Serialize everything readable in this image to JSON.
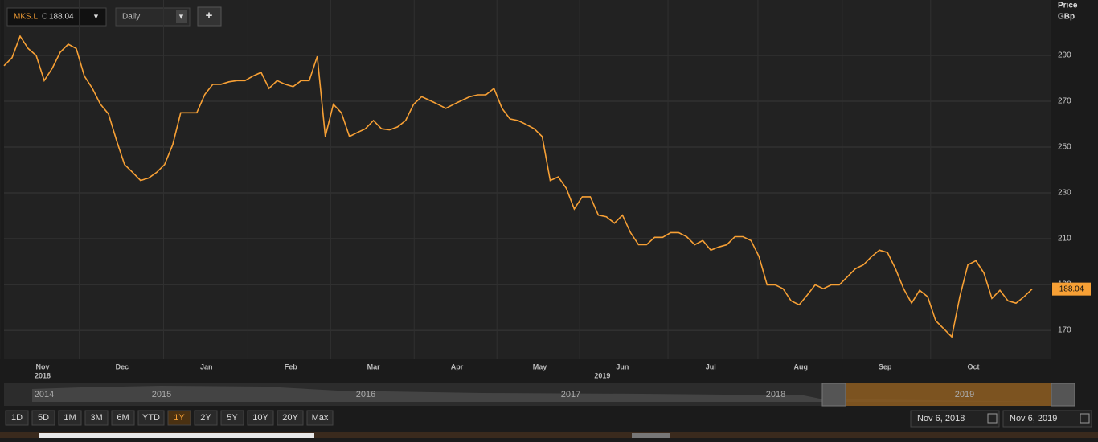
{
  "toolbar": {
    "symbol": "MKS.L",
    "close_label": "C",
    "close": 188.04,
    "interval": "Daily",
    "add": "+"
  },
  "chart_data": {
    "type": "line",
    "ylabel": "Price",
    "yunit": "GBp",
    "color": "#f7a035",
    "grid": true,
    "xlim": [
      0,
      128
    ],
    "xticks": [
      {
        "value": 4.8,
        "label": "Nov"
      },
      {
        "value": 14.7,
        "label": "Dec"
      },
      {
        "value": 25.2,
        "label": "Jan"
      },
      {
        "value": 35.7,
        "label": "Feb"
      },
      {
        "value": 46,
        "label": "Mar"
      },
      {
        "value": 56.4,
        "label": "Apr"
      },
      {
        "value": 66.7,
        "label": "May"
      },
      {
        "value": 77,
        "label": "Jun"
      },
      {
        "value": 88,
        "label": "Jul"
      },
      {
        "value": 99.2,
        "label": "Aug"
      },
      {
        "value": 109.7,
        "label": "Sep"
      },
      {
        "value": 120.7,
        "label": "Oct"
      }
    ],
    "year_labels": [
      {
        "value": 4.8,
        "label": "2018"
      },
      {
        "value": 74.5,
        "label": "2019"
      }
    ],
    "ylim": [
      157.4,
      314.2
    ],
    "yticks": [
      170,
      190,
      210,
      230,
      250,
      270,
      290
    ],
    "values": [
      285.5,
      289,
      298.4,
      293,
      290,
      279,
      284.4,
      291.4,
      294.9,
      293,
      281,
      275.6,
      268.7,
      264.5,
      253,
      242.4,
      239,
      235.4,
      236.5,
      239,
      242.4,
      251,
      265,
      265,
      265,
      273,
      277.4,
      277.4,
      278.5,
      279,
      279,
      281,
      282.6,
      275.6,
      279,
      277.4,
      276.4,
      279,
      279,
      289.6,
      254.6,
      268.7,
      265,
      254.6,
      256.4,
      258,
      261.6,
      258,
      257.5,
      258.8,
      261.6,
      268.7,
      272,
      270.4,
      268.7,
      266.9,
      268.7,
      270.4,
      272,
      272.8,
      272.8,
      275.6,
      266.9,
      262.3,
      261.6,
      259.9,
      258,
      254.6,
      235.4,
      237,
      232,
      223,
      228.3,
      228.3,
      220.3,
      219.6,
      216.8,
      220.3,
      212.7,
      207.4,
      207.4,
      210.6,
      210.6,
      212.7,
      212.7,
      210.9,
      207.4,
      209.2,
      205,
      206.4,
      207.4,
      210.9,
      210.9,
      209.2,
      202.2,
      189.9,
      189.9,
      188.2,
      182.9,
      181.2,
      185.4,
      189.9,
      188.2,
      189.9,
      189.9,
      193.4,
      196.9,
      198.6,
      202.2,
      205,
      204,
      196.9,
      188.2,
      181.9,
      187.5,
      184.7,
      174.2,
      170.7,
      167.2,
      184.7,
      198.6,
      200.4,
      195.1,
      184,
      187.5,
      182.9,
      181.9,
      184.7,
      188.04
    ]
  },
  "navigator": {
    "years": [
      "2014",
      "2015",
      "2016",
      "2017",
      "2018",
      "2019"
    ]
  },
  "range_buttons": [
    "1D",
    "5D",
    "1M",
    "3M",
    "6M",
    "YTD",
    "1Y",
    "2Y",
    "5Y",
    "10Y",
    "20Y",
    "Max"
  ],
  "active_range": "1Y",
  "date_from": "Nov 6, 2018",
  "date_to": "Nov 6, 2019"
}
